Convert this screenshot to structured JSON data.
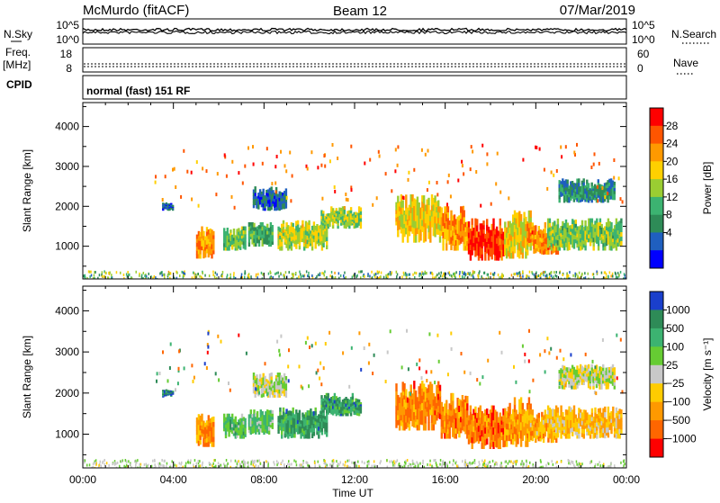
{
  "header": {
    "station": "McMurdo (fitACF)",
    "beam": "Beam 12",
    "date": "07/Mar/2019"
  },
  "strip_panels": {
    "sky": {
      "left_label": "N.Sky",
      "left_ticks": [
        "10^5",
        "10^0"
      ],
      "right_ticks": [
        "10^5",
        "10^0"
      ],
      "right_label": "N.Search"
    },
    "freq": {
      "left_label_1": "Freq.",
      "left_label_2": "[MHz]",
      "left_ticks": [
        "18",
        "8"
      ],
      "right_ticks": [
        "60",
        "0"
      ],
      "right_label": "Nave"
    },
    "cpid": {
      "left_label": "CPID",
      "text": "normal (fast) 151 RF"
    }
  },
  "chart_data": [
    {
      "type": "heatmap",
      "panel": "power",
      "xlabel": "Time UT",
      "ylabel": "Slant Range [km]",
      "x_ticks": [
        "00:00",
        "04:00",
        "08:00",
        "12:00",
        "16:00",
        "20:00",
        "00:00"
      ],
      "x_range_hours": [
        0,
        24
      ],
      "y_ticks": [
        1000,
        2000,
        3000,
        4000
      ],
      "ylim": [
        180,
        4600
      ],
      "colorbar": {
        "label": "Power [dB]",
        "tick_labels": [
          "28",
          "24",
          "20",
          "16",
          "12",
          "8",
          "4"
        ],
        "colors": [
          "#ff0000",
          "#ff5500",
          "#ff9900",
          "#ffd000",
          "#9acd32",
          "#3cb371",
          "#2e8b57",
          "#1f5fbf",
          "#0000ff"
        ]
      },
      "regions": [
        {
          "t0": 5.0,
          "t1": 5.8,
          "r0": 700,
          "r1": 1500,
          "level": 0.75
        },
        {
          "t0": 6.2,
          "t1": 7.2,
          "r0": 900,
          "r1": 1500,
          "level": 0.45
        },
        {
          "t0": 7.3,
          "t1": 8.4,
          "r0": 1000,
          "r1": 1600,
          "level": 0.35
        },
        {
          "t0": 8.6,
          "t1": 10.8,
          "r0": 900,
          "r1": 1650,
          "level": 0.55
        },
        {
          "t0": 10.5,
          "t1": 12.3,
          "r0": 1450,
          "r1": 2000,
          "level": 0.5
        },
        {
          "t0": 13.8,
          "t1": 15.8,
          "r0": 1100,
          "r1": 2300,
          "level": 0.6
        },
        {
          "t0": 15.8,
          "t1": 17.0,
          "r0": 900,
          "r1": 2000,
          "level": 0.75
        },
        {
          "t0": 17.0,
          "t1": 18.6,
          "r0": 650,
          "r1": 1700,
          "level": 0.95
        },
        {
          "t0": 18.6,
          "t1": 19.8,
          "r0": 700,
          "r1": 1900,
          "level": 0.6
        },
        {
          "t0": 19.6,
          "t1": 21.0,
          "r0": 800,
          "r1": 1600,
          "level": 0.8
        },
        {
          "t0": 20.5,
          "t1": 23.8,
          "r0": 900,
          "r1": 1700,
          "level": 0.45
        },
        {
          "t0": 21.0,
          "t1": 23.5,
          "r0": 2100,
          "r1": 2700,
          "level": 0.25
        },
        {
          "t0": 7.5,
          "t1": 9.0,
          "r0": 1900,
          "r1": 2500,
          "level": 0.15
        },
        {
          "t0": 3.5,
          "t1": 4.0,
          "r0": 1900,
          "r1": 2100,
          "level": 0.15
        }
      ]
    },
    {
      "type": "heatmap",
      "panel": "velocity",
      "xlabel": "Time UT",
      "ylabel": "Slant Range [km]",
      "x_ticks": [
        "00:00",
        "04:00",
        "08:00",
        "12:00",
        "16:00",
        "20:00",
        "00:00"
      ],
      "x_range_hours": [
        0,
        24
      ],
      "y_ticks": [
        1000,
        2000,
        3000,
        4000
      ],
      "ylim": [
        180,
        4600
      ],
      "colorbar": {
        "label": "Velocity [m s⁻¹]",
        "tick_labels": [
          "1000",
          "500",
          "100",
          "25",
          "−25",
          "−100",
          "−500",
          "−1000"
        ],
        "colors": [
          "#1a3fcc",
          "#2e8b57",
          "#3cb371",
          "#66cc33",
          "#c8c8c8",
          "#ffcc00",
          "#ff9900",
          "#ff6600",
          "#ff0000"
        ]
      },
      "regions": [
        {
          "t0": 5.0,
          "t1": 5.8,
          "r0": 700,
          "r1": 1500,
          "level": 0.75
        },
        {
          "t0": 6.2,
          "t1": 7.2,
          "r0": 900,
          "r1": 1500,
          "level": 0.3
        },
        {
          "t0": 7.3,
          "t1": 8.4,
          "r0": 1000,
          "r1": 1600,
          "level": 0.35
        },
        {
          "t0": 8.6,
          "t1": 10.8,
          "r0": 900,
          "r1": 1650,
          "level": 0.2
        },
        {
          "t0": 10.5,
          "t1": 12.3,
          "r0": 1450,
          "r1": 2000,
          "level": 0.2
        },
        {
          "t0": 13.8,
          "t1": 15.8,
          "r0": 1100,
          "r1": 2300,
          "level": 0.8
        },
        {
          "t0": 15.8,
          "t1": 17.0,
          "r0": 900,
          "r1": 2000,
          "level": 0.8
        },
        {
          "t0": 17.0,
          "t1": 18.6,
          "r0": 650,
          "r1": 1700,
          "level": 0.82
        },
        {
          "t0": 18.6,
          "t1": 19.8,
          "r0": 700,
          "r1": 1900,
          "level": 0.75
        },
        {
          "t0": 19.6,
          "t1": 21.0,
          "r0": 800,
          "r1": 1600,
          "level": 0.7
        },
        {
          "t0": 20.5,
          "t1": 23.8,
          "r0": 900,
          "r1": 1700,
          "level": 0.65
        },
        {
          "t0": 21.0,
          "t1": 23.5,
          "r0": 2100,
          "r1": 2700,
          "level": 0.5
        },
        {
          "t0": 7.5,
          "t1": 9.0,
          "r0": 1900,
          "r1": 2500,
          "level": 0.5
        },
        {
          "t0": 3.5,
          "t1": 4.0,
          "r0": 1900,
          "r1": 2100,
          "level": 0.1
        }
      ]
    }
  ]
}
